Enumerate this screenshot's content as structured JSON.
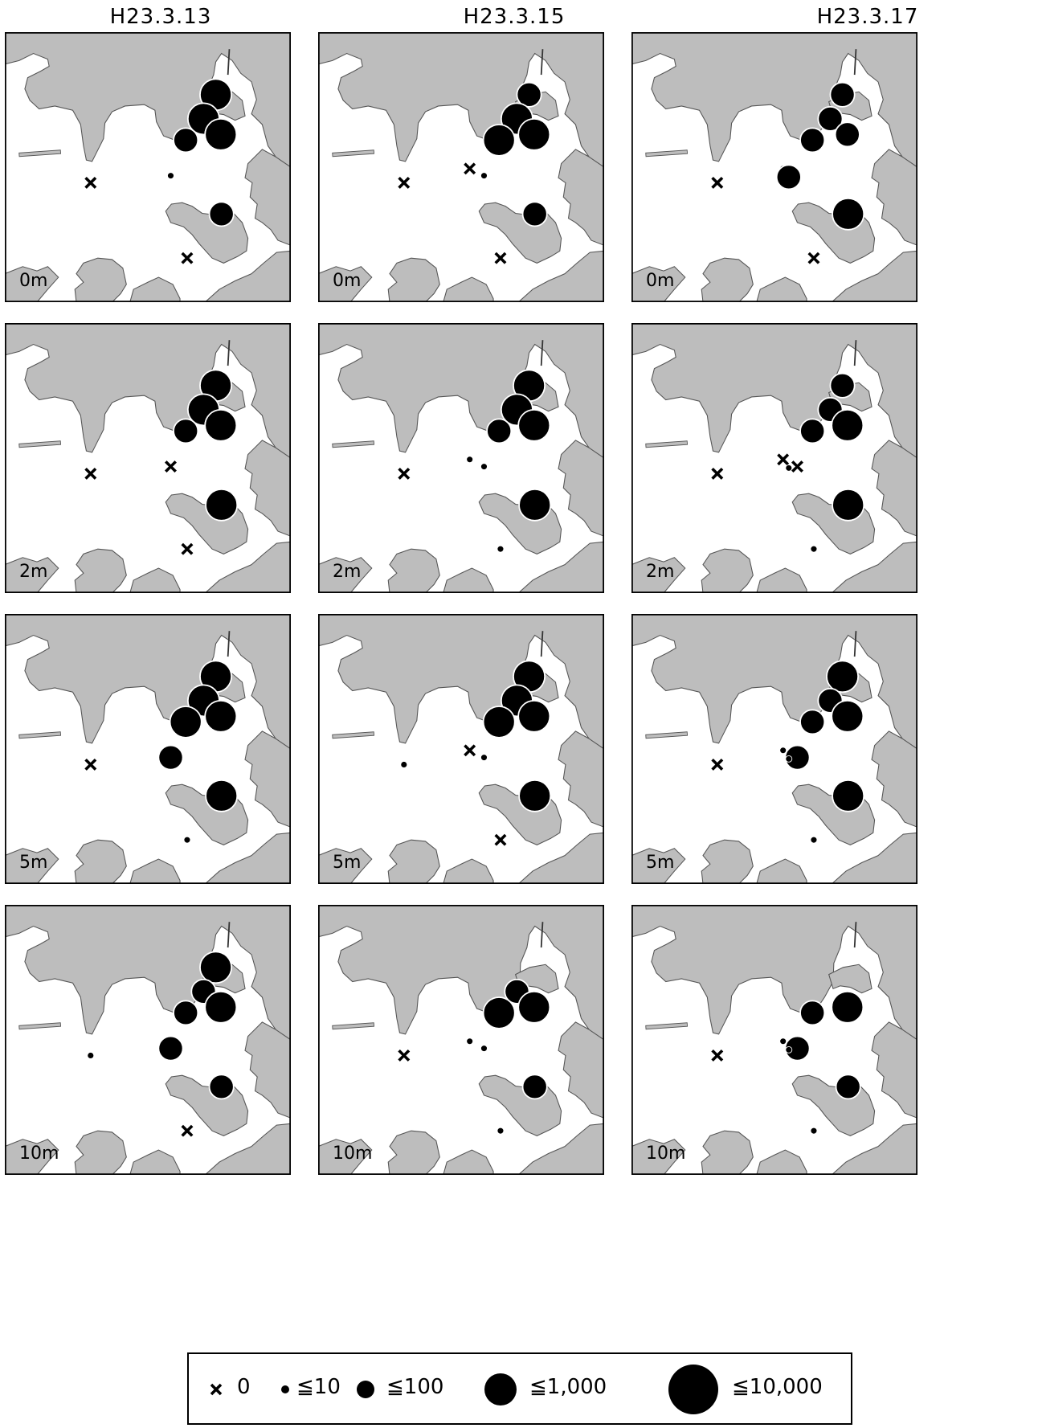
{
  "columns": [
    {
      "date": "H23.3.13"
    },
    {
      "date": "H23.3.15"
    },
    {
      "date": "H23.3.17"
    }
  ],
  "rows": [
    {
      "depth": "0m"
    },
    {
      "depth": "2m"
    },
    {
      "depth": "5m"
    },
    {
      "depth": "10m"
    }
  ],
  "legend": {
    "items": [
      {
        "key": "zero",
        "label": "0"
      },
      {
        "key": "le10",
        "label": "≦10"
      },
      {
        "key": "le100",
        "label": "≦100"
      },
      {
        "key": "le1000",
        "label": "≦1,000"
      },
      {
        "key": "le10000",
        "label": "≦10,000"
      }
    ]
  },
  "colors": {
    "land": "#bdbdbd",
    "sea": "#ffffff",
    "marker": "#000000",
    "frame": "#000000"
  }
}
